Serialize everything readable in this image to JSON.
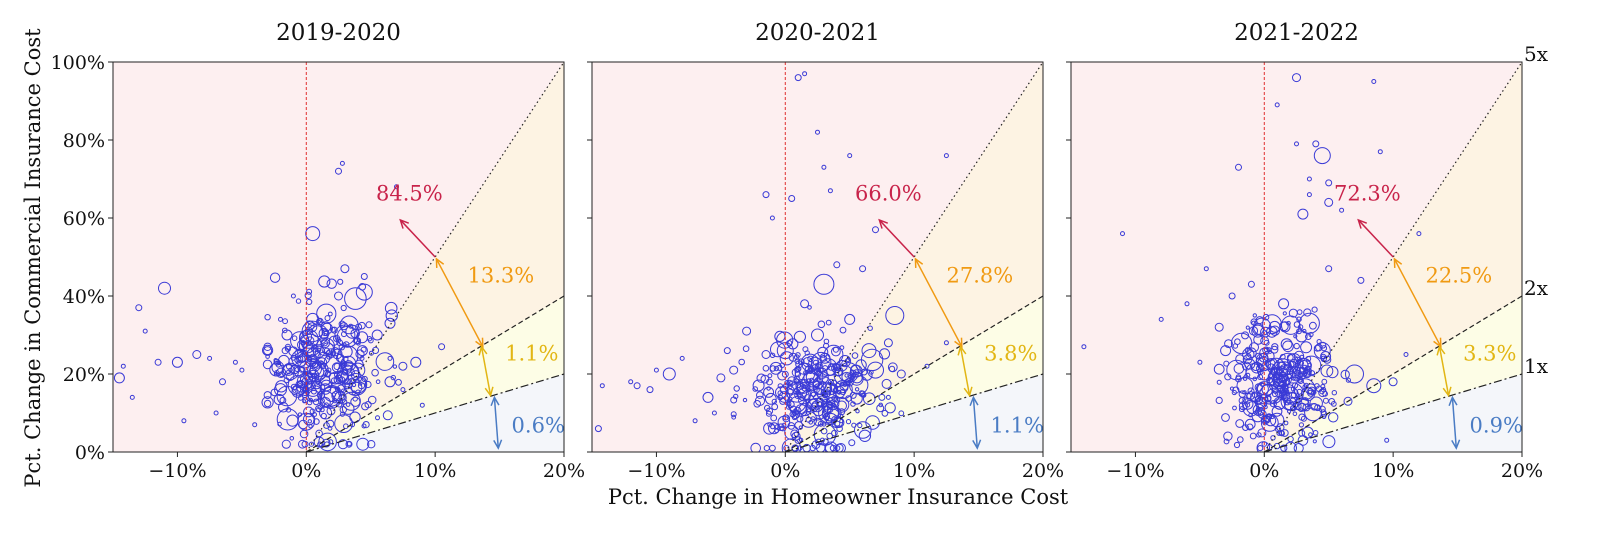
{
  "figure": {
    "xlabel": "Pct. Change in Homeowner Insurance Cost",
    "ylabel": "Pct. Change in Commercial Insurance Cost",
    "multiplier_labels": [
      "5x",
      "2x",
      "1x"
    ],
    "colors": {
      "zone_above_5x": "#fdeff0",
      "zone_2x_5x": "#fdf3e3",
      "zone_1x_2x": "#fdfde6",
      "zone_below_1x": "#f4f6fa",
      "points": "#3a3ad6",
      "label_above_5x": "#c8234a",
      "label_2x_5x": "#f09a12",
      "label_1x_2x": "#e2b614",
      "label_below_1x": "#4a7cc4",
      "zero_line": "#e03030"
    }
  },
  "chart_data": [
    {
      "type": "scatter",
      "title": "2019-2020",
      "xlim": [
        -15,
        20
      ],
      "ylim": [
        0,
        100
      ],
      "xticks": [
        {
          "v": -10,
          "label": "−10%"
        },
        {
          "v": 0,
          "label": "0%"
        },
        {
          "v": 10,
          "label": "10%"
        },
        {
          "v": 20,
          "label": "20%"
        }
      ],
      "yticks": [
        {
          "v": 0,
          "label": "0%"
        },
        {
          "v": 20,
          "label": "20%"
        },
        {
          "v": 40,
          "label": "40%"
        },
        {
          "v": 60,
          "label": "60%"
        },
        {
          "v": 80,
          "label": "80%"
        },
        {
          "v": 100,
          "label": "100%"
        }
      ],
      "reference_lines": [
        {
          "multiplier": 5,
          "style": "dotted"
        },
        {
          "multiplier": 2,
          "style": "dashed"
        },
        {
          "multiplier": 1,
          "style": "dashdot"
        }
      ],
      "zone_shares": {
        "above_5x": "84.5%",
        "between_2x_5x": "13.3%",
        "between_1x_2x": "1.1%",
        "below_1x": "0.6%"
      },
      "highlight_points": [
        {
          "x": -14.5,
          "y": 19,
          "r": 5
        },
        {
          "x": -14.2,
          "y": 22,
          "r": 2
        },
        {
          "x": -13.5,
          "y": 14,
          "r": 2
        },
        {
          "x": -13,
          "y": 37,
          "r": 3
        },
        {
          "x": -12.5,
          "y": 31,
          "r": 2
        },
        {
          "x": -11.5,
          "y": 23,
          "r": 3
        },
        {
          "x": -11,
          "y": 42,
          "r": 6
        },
        {
          "x": -10,
          "y": 23,
          "r": 5
        },
        {
          "x": -9.5,
          "y": 8,
          "r": 2
        },
        {
          "x": -8.5,
          "y": 25,
          "r": 4
        },
        {
          "x": -7.5,
          "y": 24,
          "r": 2
        },
        {
          "x": -7,
          "y": 10,
          "r": 2
        },
        {
          "x": -6.5,
          "y": 18,
          "r": 3
        },
        {
          "x": -5.5,
          "y": 23,
          "r": 2
        },
        {
          "x": -5,
          "y": 21,
          "r": 2
        },
        {
          "x": -4,
          "y": 7,
          "r": 2
        },
        {
          "x": -3,
          "y": 26,
          "r": 4
        },
        {
          "x": -2,
          "y": 34,
          "r": 2
        },
        {
          "x": -1,
          "y": 40,
          "r": 2
        },
        {
          "x": 0.5,
          "y": 56,
          "r": 7
        },
        {
          "x": 2.5,
          "y": 72,
          "r": 3
        },
        {
          "x": 2.8,
          "y": 74,
          "r": 2
        },
        {
          "x": 4.5,
          "y": 45,
          "r": 3
        },
        {
          "x": 4.5,
          "y": 41,
          "r": 8
        },
        {
          "x": 3,
          "y": 30,
          "r": 10
        },
        {
          "x": 1.5,
          "y": 27,
          "r": 9
        },
        {
          "x": 5.5,
          "y": 30,
          "r": 5
        },
        {
          "x": 6.5,
          "y": 33,
          "r": 5
        },
        {
          "x": 6.5,
          "y": 24,
          "r": 2
        },
        {
          "x": 7.5,
          "y": 22,
          "r": 4
        },
        {
          "x": 8.5,
          "y": 23,
          "r": 5
        },
        {
          "x": 10.5,
          "y": 27,
          "r": 3
        },
        {
          "x": 6.5,
          "y": 18,
          "r": 5
        },
        {
          "x": 7,
          "y": 68,
          "r": 2
        },
        {
          "x": 7.5,
          "y": 16,
          "r": 2
        },
        {
          "x": 9,
          "y": 12,
          "r": 2
        },
        {
          "x": 0,
          "y": 18,
          "r": 9
        },
        {
          "x": 1,
          "y": 21,
          "r": 9
        },
        {
          "x": 2,
          "y": 15,
          "r": 8
        },
        {
          "x": 3.5,
          "y": 13,
          "r": 9
        },
        {
          "x": -0.5,
          "y": 24,
          "r": 8
        },
        {
          "x": 4,
          "y": 21,
          "r": 7
        },
        {
          "x": 1.5,
          "y": 10,
          "r": 6
        },
        {
          "x": 0.5,
          "y": 34,
          "r": 6
        },
        {
          "x": 2.5,
          "y": 40,
          "r": 4
        },
        {
          "x": 3,
          "y": 47,
          "r": 4
        },
        {
          "x": -1.5,
          "y": 30,
          "r": 5
        },
        {
          "x": -2,
          "y": 16,
          "r": 6
        }
      ],
      "cloud": {
        "seed": 11,
        "count": 330,
        "x_center": 1.5,
        "x_spread": 2.2,
        "y_center": 20,
        "y_spread": 8.5,
        "x_min": -3,
        "x_max": 7.5,
        "y_min": 2,
        "y_max": 50
      }
    },
    {
      "type": "scatter",
      "title": "2020-2021",
      "xlim": [
        -15,
        20
      ],
      "ylim": [
        0,
        100
      ],
      "xticks": [
        {
          "v": -10,
          "label": "−10%"
        },
        {
          "v": 0,
          "label": "0%"
        },
        {
          "v": 10,
          "label": "10%"
        },
        {
          "v": 20,
          "label": "20%"
        }
      ],
      "yticks": [
        {
          "v": 0,
          "label": ""
        },
        {
          "v": 20,
          "label": ""
        },
        {
          "v": 40,
          "label": ""
        },
        {
          "v": 60,
          "label": ""
        },
        {
          "v": 80,
          "label": ""
        },
        {
          "v": 100,
          "label": ""
        }
      ],
      "reference_lines": [
        {
          "multiplier": 5,
          "style": "dotted"
        },
        {
          "multiplier": 2,
          "style": "dashed"
        },
        {
          "multiplier": 1,
          "style": "dashdot"
        }
      ],
      "zone_shares": {
        "above_5x": "66.0%",
        "between_2x_5x": "27.8%",
        "between_1x_2x": "3.8%",
        "below_1x": "1.1%"
      },
      "highlight_points": [
        {
          "x": -14.5,
          "y": 6,
          "r": 3
        },
        {
          "x": -14.2,
          "y": 17,
          "r": 2
        },
        {
          "x": -12,
          "y": 18,
          "r": 2
        },
        {
          "x": -11.5,
          "y": 17,
          "r": 3
        },
        {
          "x": -10.5,
          "y": 16,
          "r": 3
        },
        {
          "x": -10,
          "y": 21,
          "r": 2
        },
        {
          "x": -9,
          "y": 20,
          "r": 6
        },
        {
          "x": -8,
          "y": 24,
          "r": 2
        },
        {
          "x": -7,
          "y": 8,
          "r": 2
        },
        {
          "x": -6,
          "y": 14,
          "r": 5
        },
        {
          "x": -5.5,
          "y": 10,
          "r": 2
        },
        {
          "x": -5,
          "y": 19,
          "r": 4
        },
        {
          "x": -4.5,
          "y": 26,
          "r": 3
        },
        {
          "x": -4,
          "y": 21,
          "r": 4
        },
        {
          "x": -3,
          "y": 31,
          "r": 4
        },
        {
          "x": -1.5,
          "y": 25,
          "r": 4
        },
        {
          "x": -1.5,
          "y": 66,
          "r": 3
        },
        {
          "x": -1,
          "y": 60,
          "r": 2
        },
        {
          "x": 0.5,
          "y": 65,
          "r": 3
        },
        {
          "x": 1,
          "y": 96,
          "r": 3
        },
        {
          "x": 1.5,
          "y": 97,
          "r": 2
        },
        {
          "x": 2.5,
          "y": 82,
          "r": 2
        },
        {
          "x": 3,
          "y": 73,
          "r": 2
        },
        {
          "x": 3.5,
          "y": 67,
          "r": 2
        },
        {
          "x": 5,
          "y": 76,
          "r": 2
        },
        {
          "x": 7,
          "y": 57,
          "r": 3
        },
        {
          "x": 12.5,
          "y": 76,
          "r": 2
        },
        {
          "x": 3,
          "y": 43,
          "r": 10
        },
        {
          "x": 8.5,
          "y": 35,
          "r": 9
        },
        {
          "x": 7,
          "y": 21,
          "r": 8
        },
        {
          "x": 6.5,
          "y": 26,
          "r": 7
        },
        {
          "x": 5,
          "y": 34,
          "r": 5
        },
        {
          "x": 8,
          "y": 28,
          "r": 4
        },
        {
          "x": 9,
          "y": 20,
          "r": 4
        },
        {
          "x": 11,
          "y": 22,
          "r": 2
        },
        {
          "x": 12.5,
          "y": 28,
          "r": 2
        },
        {
          "x": 6,
          "y": 47,
          "r": 3
        },
        {
          "x": 4,
          "y": 48,
          "r": 3
        },
        {
          "x": 7.5,
          "y": 14,
          "r": 3
        },
        {
          "x": 8,
          "y": 14,
          "r": 2
        },
        {
          "x": 0,
          "y": 26,
          "r": 8
        },
        {
          "x": 1,
          "y": 12,
          "r": 9
        },
        {
          "x": 2,
          "y": 18,
          "r": 9
        },
        {
          "x": 3.5,
          "y": 10,
          "r": 8
        },
        {
          "x": 4.5,
          "y": 16,
          "r": 9
        },
        {
          "x": 0.5,
          "y": 5,
          "r": 7
        },
        {
          "x": 2.5,
          "y": 30,
          "r": 6
        },
        {
          "x": 1.5,
          "y": 38,
          "r": 4
        }
      ],
      "cloud": {
        "seed": 23,
        "count": 330,
        "x_center": 2,
        "x_spread": 2.6,
        "y_center": 14,
        "y_spread": 7.5,
        "x_min": -4,
        "x_max": 9,
        "y_min": 1,
        "y_max": 48
      }
    },
    {
      "type": "scatter",
      "title": "2021-2022",
      "xlim": [
        -15,
        20
      ],
      "ylim": [
        0,
        100
      ],
      "xticks": [
        {
          "v": -10,
          "label": "−10%"
        },
        {
          "v": 0,
          "label": "0%"
        },
        {
          "v": 10,
          "label": "10%"
        },
        {
          "v": 20,
          "label": "20%"
        }
      ],
      "yticks": [
        {
          "v": 0,
          "label": ""
        },
        {
          "v": 20,
          "label": ""
        },
        {
          "v": 40,
          "label": ""
        },
        {
          "v": 60,
          "label": ""
        },
        {
          "v": 80,
          "label": ""
        },
        {
          "v": 100,
          "label": ""
        }
      ],
      "reference_lines": [
        {
          "multiplier": 5,
          "style": "dotted"
        },
        {
          "multiplier": 2,
          "style": "dashed"
        },
        {
          "multiplier": 1,
          "style": "dashdot"
        }
      ],
      "zone_shares": {
        "above_5x": "72.3%",
        "between_2x_5x": "22.5%",
        "between_1x_2x": "3.3%",
        "below_1x": "0.9%"
      },
      "highlight_points": [
        {
          "x": -14,
          "y": 27,
          "r": 2
        },
        {
          "x": -11,
          "y": 56,
          "r": 2
        },
        {
          "x": -8,
          "y": 34,
          "r": 2
        },
        {
          "x": -6,
          "y": 38,
          "r": 2
        },
        {
          "x": -5,
          "y": 23,
          "r": 2
        },
        {
          "x": -4.5,
          "y": 47,
          "r": 2
        },
        {
          "x": -3.5,
          "y": 32,
          "r": 4
        },
        {
          "x": -3,
          "y": 26,
          "r": 5
        },
        {
          "x": -2,
          "y": 73,
          "r": 3
        },
        {
          "x": -2.5,
          "y": 40,
          "r": 3
        },
        {
          "x": -1,
          "y": 43,
          "r": 3
        },
        {
          "x": 1,
          "y": 89,
          "r": 2
        },
        {
          "x": 2.5,
          "y": 96,
          "r": 4
        },
        {
          "x": 2.5,
          "y": 79,
          "r": 2
        },
        {
          "x": 3.5,
          "y": 70,
          "r": 2
        },
        {
          "x": 4,
          "y": 79,
          "r": 3
        },
        {
          "x": 4.5,
          "y": 76,
          "r": 8
        },
        {
          "x": 5,
          "y": 69,
          "r": 3
        },
        {
          "x": 3.5,
          "y": 66,
          "r": 2
        },
        {
          "x": 3,
          "y": 61,
          "r": 5
        },
        {
          "x": 5,
          "y": 64,
          "r": 4
        },
        {
          "x": 6,
          "y": 62,
          "r": 2
        },
        {
          "x": 8.5,
          "y": 95,
          "r": 2
        },
        {
          "x": 9,
          "y": 77,
          "r": 2
        },
        {
          "x": 12,
          "y": 56,
          "r": 2
        },
        {
          "x": 7.5,
          "y": 44,
          "r": 3
        },
        {
          "x": 5,
          "y": 47,
          "r": 3
        },
        {
          "x": 3.5,
          "y": 33,
          "r": 10
        },
        {
          "x": 7,
          "y": 20,
          "r": 9
        },
        {
          "x": 8.5,
          "y": 17,
          "r": 7
        },
        {
          "x": 10,
          "y": 18,
          "r": 4
        },
        {
          "x": 11,
          "y": 25,
          "r": 2
        },
        {
          "x": 6.5,
          "y": 13,
          "r": 4
        },
        {
          "x": 4.5,
          "y": 11,
          "r": 3
        },
        {
          "x": 9.5,
          "y": 3,
          "r": 2
        },
        {
          "x": 0,
          "y": 16,
          "r": 8
        },
        {
          "x": 1,
          "y": 19,
          "r": 9
        },
        {
          "x": 2,
          "y": 13,
          "r": 9
        },
        {
          "x": 3,
          "y": 22,
          "r": 8
        },
        {
          "x": 4.5,
          "y": 26,
          "r": 8
        },
        {
          "x": -0.5,
          "y": 31,
          "r": 6
        },
        {
          "x": 1.5,
          "y": 38,
          "r": 5
        },
        {
          "x": -1.5,
          "y": 17,
          "r": 8
        },
        {
          "x": 0.5,
          "y": 8,
          "r": 5
        }
      ],
      "cloud": {
        "seed": 37,
        "count": 330,
        "x_center": 1.5,
        "x_spread": 2.1,
        "y_center": 18,
        "y_spread": 8,
        "x_min": -3.5,
        "x_max": 7.5,
        "y_min": 1,
        "y_max": 50
      }
    }
  ]
}
